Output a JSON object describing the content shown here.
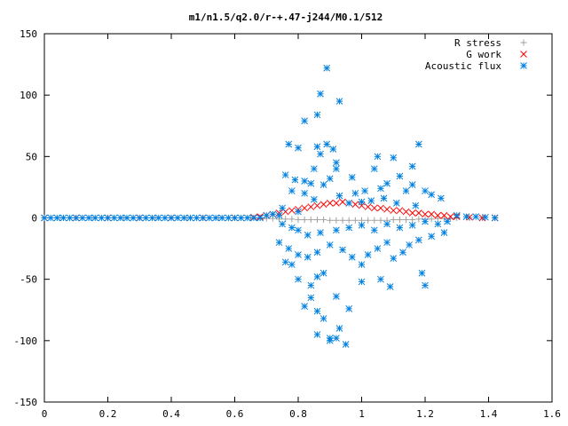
{
  "chart_data": {
    "type": "scatter",
    "title": "m1/n1.5/q2.0/r-+.47-j244/M0.1/512",
    "xlabel": "",
    "ylabel": "",
    "xlim": [
      0,
      1.6
    ],
    "ylim": [
      -150,
      150
    ],
    "x_ticks": [
      0,
      0.2,
      0.4,
      0.6,
      0.8,
      1,
      1.2,
      1.4,
      1.6
    ],
    "x_tick_labels": [
      "0",
      "0.2",
      "0.4",
      "0.6",
      "0.8",
      "1",
      "1.2",
      "1.4",
      "1.6"
    ],
    "y_ticks": [
      -150,
      -100,
      -50,
      0,
      50,
      100,
      150
    ],
    "y_tick_labels": [
      "-150",
      "-100",
      "-50",
      "0",
      "50",
      "100",
      "150"
    ],
    "grid": false,
    "legend": "top-right",
    "series": [
      {
        "name": "R stress",
        "marker": "plus",
        "color": "#a0a0a0",
        "points": [
          [
            0.0,
            0
          ],
          [
            0.05,
            0
          ],
          [
            0.1,
            0
          ],
          [
            0.15,
            0
          ],
          [
            0.2,
            0
          ],
          [
            0.25,
            0
          ],
          [
            0.3,
            0
          ],
          [
            0.35,
            0
          ],
          [
            0.4,
            0
          ],
          [
            0.45,
            0
          ],
          [
            0.5,
            0
          ],
          [
            0.55,
            0
          ],
          [
            0.6,
            0
          ],
          [
            0.65,
            0
          ],
          [
            0.68,
            0
          ],
          [
            0.7,
            -0.5
          ],
          [
            0.72,
            -0.5
          ],
          [
            0.74,
            -1
          ],
          [
            0.76,
            -1
          ],
          [
            0.78,
            -1
          ],
          [
            0.8,
            -1.5
          ],
          [
            0.82,
            -1.5
          ],
          [
            0.84,
            -1.5
          ],
          [
            0.86,
            -1.5
          ],
          [
            0.88,
            -1.5
          ],
          [
            0.9,
            -2
          ],
          [
            0.92,
            -2
          ],
          [
            0.94,
            -2
          ],
          [
            0.96,
            -2
          ],
          [
            0.98,
            -2
          ],
          [
            1.0,
            -2
          ],
          [
            1.02,
            -2
          ],
          [
            1.04,
            -2
          ],
          [
            1.06,
            -2
          ],
          [
            1.08,
            -2
          ],
          [
            1.1,
            -1.5
          ],
          [
            1.12,
            -1.5
          ],
          [
            1.14,
            -1.5
          ],
          [
            1.16,
            -1.5
          ],
          [
            1.18,
            -1
          ],
          [
            1.2,
            -1
          ],
          [
            1.22,
            -1
          ],
          [
            1.24,
            -0.5
          ],
          [
            1.26,
            -0.5
          ],
          [
            1.28,
            -0.5
          ],
          [
            1.3,
            0
          ],
          [
            1.34,
            0
          ],
          [
            1.38,
            0
          ],
          [
            1.42,
            0
          ]
        ]
      },
      {
        "name": "G work",
        "marker": "cross",
        "color": "#ff0000",
        "points": [
          [
            0.0,
            0
          ],
          [
            0.1,
            0
          ],
          [
            0.2,
            0
          ],
          [
            0.3,
            0
          ],
          [
            0.4,
            0
          ],
          [
            0.5,
            0
          ],
          [
            0.6,
            0
          ],
          [
            0.66,
            0.5
          ],
          [
            0.68,
            1
          ],
          [
            0.7,
            2
          ],
          [
            0.72,
            3
          ],
          [
            0.74,
            4
          ],
          [
            0.76,
            5
          ],
          [
            0.78,
            6
          ],
          [
            0.8,
            7
          ],
          [
            0.82,
            8
          ],
          [
            0.84,
            9
          ],
          [
            0.86,
            10
          ],
          [
            0.88,
            11
          ],
          [
            0.9,
            12
          ],
          [
            0.92,
            12
          ],
          [
            0.94,
            13
          ],
          [
            0.96,
            12
          ],
          [
            0.98,
            11
          ],
          [
            1.0,
            10
          ],
          [
            1.02,
            9
          ],
          [
            1.04,
            8
          ],
          [
            1.06,
            8
          ],
          [
            1.08,
            7
          ],
          [
            1.1,
            6
          ],
          [
            1.12,
            6
          ],
          [
            1.14,
            5
          ],
          [
            1.16,
            4
          ],
          [
            1.18,
            4
          ],
          [
            1.2,
            3
          ],
          [
            1.22,
            3
          ],
          [
            1.24,
            2
          ],
          [
            1.26,
            2
          ],
          [
            1.28,
            1
          ],
          [
            1.3,
            1
          ],
          [
            1.34,
            0.5
          ],
          [
            1.38,
            0
          ],
          [
            1.42,
            0
          ]
        ]
      },
      {
        "name": "Acoustic flux",
        "marker": "star",
        "color": "#0080e0",
        "points": [
          [
            0.0,
            0
          ],
          [
            0.02,
            0
          ],
          [
            0.04,
            0
          ],
          [
            0.06,
            0
          ],
          [
            0.08,
            0
          ],
          [
            0.1,
            0
          ],
          [
            0.12,
            0
          ],
          [
            0.14,
            0
          ],
          [
            0.16,
            0
          ],
          [
            0.18,
            0
          ],
          [
            0.2,
            0
          ],
          [
            0.22,
            0
          ],
          [
            0.24,
            0
          ],
          [
            0.26,
            0
          ],
          [
            0.28,
            0
          ],
          [
            0.3,
            0
          ],
          [
            0.32,
            0
          ],
          [
            0.34,
            0
          ],
          [
            0.36,
            0
          ],
          [
            0.38,
            0
          ],
          [
            0.4,
            0
          ],
          [
            0.42,
            0
          ],
          [
            0.44,
            0
          ],
          [
            0.46,
            0
          ],
          [
            0.48,
            0
          ],
          [
            0.5,
            0
          ],
          [
            0.52,
            0
          ],
          [
            0.54,
            0
          ],
          [
            0.56,
            0
          ],
          [
            0.58,
            0
          ],
          [
            0.6,
            0
          ],
          [
            0.62,
            0
          ],
          [
            0.64,
            0
          ],
          [
            0.66,
            0
          ],
          [
            0.68,
            0
          ],
          [
            0.7,
            2
          ],
          [
            0.72,
            3
          ],
          [
            0.74,
            2
          ],
          [
            0.89,
            122
          ],
          [
            0.87,
            101
          ],
          [
            0.86,
            84
          ],
          [
            0.82,
            79
          ],
          [
            0.93,
            95
          ],
          [
            0.77,
            60
          ],
          [
            0.8,
            57
          ],
          [
            0.86,
            58
          ],
          [
            0.89,
            60
          ],
          [
            0.91,
            56
          ],
          [
            0.87,
            52
          ],
          [
            0.92,
            45
          ],
          [
            0.85,
            40
          ],
          [
            0.92,
            40
          ],
          [
            0.76,
            35
          ],
          [
            0.79,
            31
          ],
          [
            0.82,
            30
          ],
          [
            0.9,
            32
          ],
          [
            0.97,
            33
          ],
          [
            0.84,
            28
          ],
          [
            0.88,
            27
          ],
          [
            1.05,
            50
          ],
          [
            1.1,
            49
          ],
          [
            1.18,
            60
          ],
          [
            1.16,
            42
          ],
          [
            1.04,
            40
          ],
          [
            1.12,
            34
          ],
          [
            1.08,
            28
          ],
          [
            1.16,
            27
          ],
          [
            0.78,
            22
          ],
          [
            0.82,
            20
          ],
          [
            0.98,
            20
          ],
          [
            1.01,
            22
          ],
          [
            1.06,
            24
          ],
          [
            1.14,
            22
          ],
          [
            1.2,
            22
          ],
          [
            1.22,
            19
          ],
          [
            1.25,
            16
          ],
          [
            0.85,
            15
          ],
          [
            0.93,
            18
          ],
          [
            0.96,
            12
          ],
          [
            1.0,
            13
          ],
          [
            1.03,
            14
          ],
          [
            1.07,
            16
          ],
          [
            1.11,
            12
          ],
          [
            1.17,
            10
          ],
          [
            0.75,
            8
          ],
          [
            0.8,
            5
          ],
          [
            0.75,
            -5
          ],
          [
            0.78,
            -8
          ],
          [
            0.8,
            -10
          ],
          [
            0.83,
            -14
          ],
          [
            0.87,
            -12
          ],
          [
            0.92,
            -10
          ],
          [
            0.96,
            -8
          ],
          [
            1.0,
            -6
          ],
          [
            1.04,
            -10
          ],
          [
            1.08,
            -5
          ],
          [
            1.12,
            -8
          ],
          [
            1.16,
            -6
          ],
          [
            1.2,
            -3
          ],
          [
            1.24,
            -5
          ],
          [
            1.27,
            -3
          ],
          [
            1.3,
            2
          ],
          [
            1.33,
            1
          ],
          [
            1.36,
            1
          ],
          [
            1.39,
            0.5
          ],
          [
            1.42,
            0
          ],
          [
            0.74,
            -20
          ],
          [
            0.77,
            -25
          ],
          [
            0.8,
            -30
          ],
          [
            0.83,
            -32
          ],
          [
            0.76,
            -36
          ],
          [
            0.78,
            -38
          ],
          [
            0.86,
            -28
          ],
          [
            0.9,
            -22
          ],
          [
            0.94,
            -26
          ],
          [
            0.97,
            -32
          ],
          [
            1.0,
            -38
          ],
          [
            1.02,
            -30
          ],
          [
            1.05,
            -25
          ],
          [
            1.08,
            -20
          ],
          [
            1.1,
            -33
          ],
          [
            1.13,
            -28
          ],
          [
            1.15,
            -22
          ],
          [
            1.18,
            -18
          ],
          [
            1.22,
            -15
          ],
          [
            1.26,
            -12
          ],
          [
            0.8,
            -50
          ],
          [
            0.84,
            -55
          ],
          [
            0.86,
            -48
          ],
          [
            0.88,
            -45
          ],
          [
            0.92,
            -64
          ],
          [
            0.96,
            -74
          ],
          [
            0.84,
            -65
          ],
          [
            1.0,
            -52
          ],
          [
            1.06,
            -50
          ],
          [
            1.09,
            -56
          ],
          [
            1.19,
            -45
          ],
          [
            1.2,
            -55
          ],
          [
            0.82,
            -72
          ],
          [
            0.86,
            -95
          ],
          [
            0.9,
            -100
          ],
          [
            0.92,
            -98
          ],
          [
            0.93,
            -90
          ],
          [
            0.95,
            -103
          ],
          [
            0.9,
            -98
          ],
          [
            0.86,
            -76
          ],
          [
            0.88,
            -82
          ]
        ]
      }
    ]
  }
}
